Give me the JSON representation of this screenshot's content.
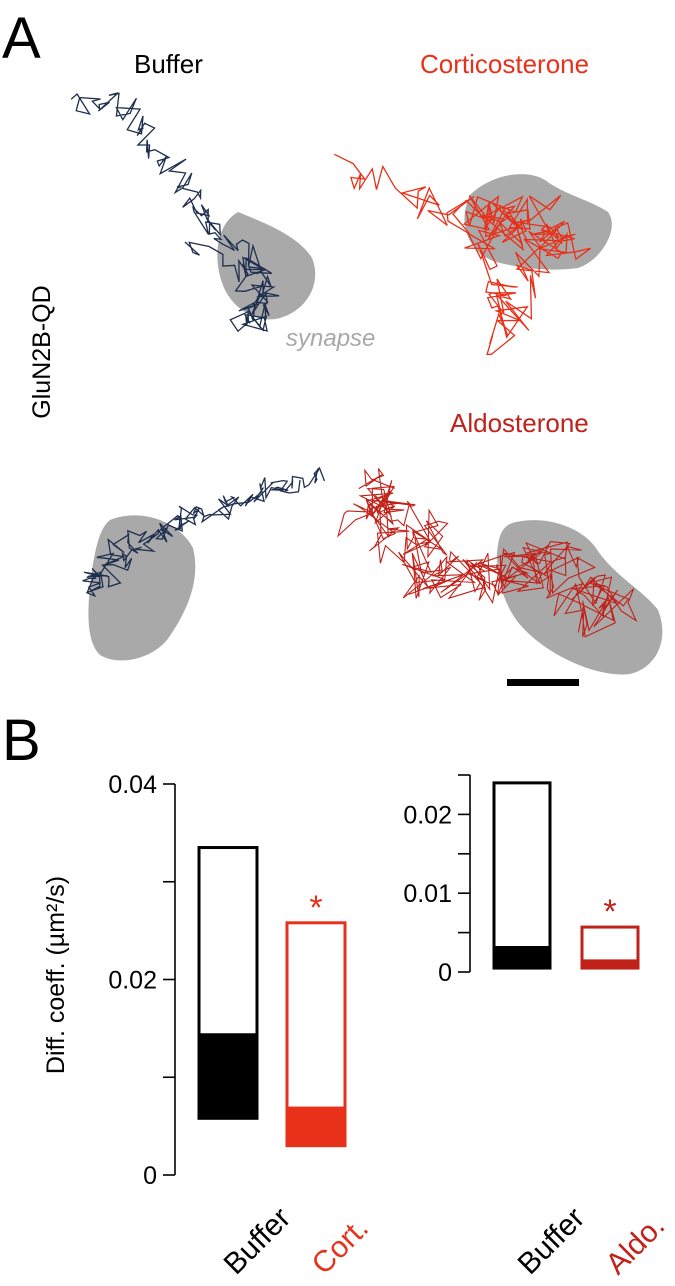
{
  "panel_a": {
    "letter": "A",
    "row_label": "GluN2B-QD",
    "synapse_label": "synapse",
    "conditions": [
      {
        "title": "Buffer",
        "color": "#1f2f4f"
      },
      {
        "title": "Corticosterone",
        "color": "#e8311a"
      },
      {
        "title": "",
        "color": "#1f2f4f"
      },
      {
        "title": "Aldosterone",
        "color": "#c0221a"
      }
    ],
    "synapse_color": "#a9a9a9"
  },
  "panel_b": {
    "letter": "B",
    "ylabel": "Diff. coeff. (µm²/s)",
    "significance": "*"
  },
  "chart_data": [
    {
      "type": "bar",
      "categories": [
        "Buffer",
        "Cort."
      ],
      "colors": [
        "#000000",
        "#e8311a"
      ],
      "ylim": [
        0,
        0.04
      ],
      "yticks": [
        "0",
        "0.02",
        "0.04"
      ],
      "ylabel": "Diff. coeff. (µm²/s)",
      "series": [
        {
          "stat": "25th percentile",
          "values": [
            0.0058,
            0.003
          ]
        },
        {
          "stat": "median",
          "values": [
            0.0145,
            0.007
          ]
        },
        {
          "stat": "75th percentile",
          "values": [
            0.0335,
            0.0258
          ]
        }
      ],
      "significance": [
        null,
        "*"
      ]
    },
    {
      "type": "bar",
      "categories": [
        "Buffer",
        "Aldo."
      ],
      "colors": [
        "#000000",
        "#c0221a"
      ],
      "ylim": [
        0,
        0.025
      ],
      "yticks": [
        "0",
        "0.01",
        "0.02"
      ],
      "series": [
        {
          "stat": "25th percentile",
          "values": [
            0.0005,
            0.0005
          ]
        },
        {
          "stat": "median",
          "values": [
            0.0033,
            0.0016
          ]
        },
        {
          "stat": "75th percentile",
          "values": [
            0.024,
            0.0057
          ]
        }
      ],
      "significance": [
        null,
        "*"
      ]
    }
  ]
}
